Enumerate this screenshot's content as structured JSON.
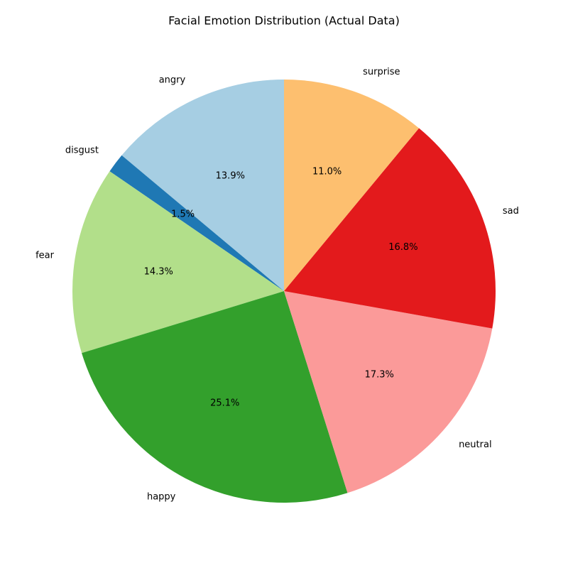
{
  "chart_data": {
    "type": "pie",
    "title": "Facial Emotion Distribution (Actual Data)",
    "start_angle_deg": 90,
    "direction": "counterclockwise",
    "categories": [
      "angry",
      "disgust",
      "fear",
      "happy",
      "neutral",
      "sad",
      "surprise"
    ],
    "values": [
      13.9,
      1.5,
      14.3,
      25.1,
      17.3,
      16.8,
      11.0
    ],
    "value_labels": [
      "13.9%",
      "1.5%",
      "14.3%",
      "25.1%",
      "17.3%",
      "16.8%",
      "11.0%"
    ],
    "colors": [
      "#a6cee3",
      "#1f78b4",
      "#b2df8a",
      "#33a02c",
      "#fb9a99",
      "#e31a1c",
      "#fdbf6f"
    ]
  }
}
